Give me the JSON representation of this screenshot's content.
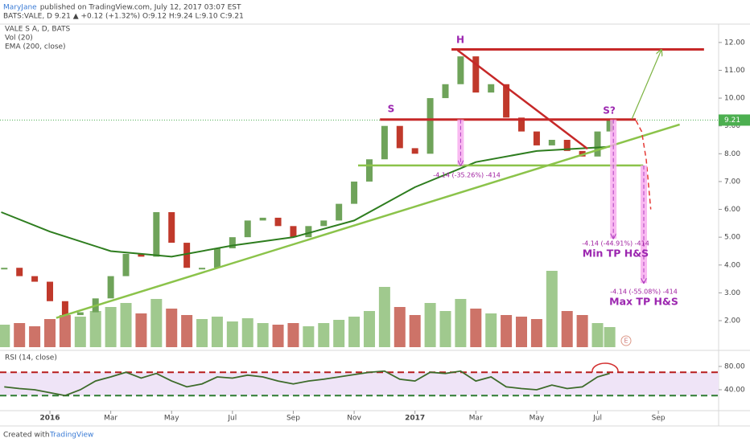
{
  "header": {
    "publisher": "MaryJane",
    "published": "published on TradingView.com, July 12, 2017 03:07 EST",
    "quote": "BATS:VALE, D  9.21 ▲ +0.12 (+1.32%) O:9.12 H:9.24 L:9.10 C:9.21"
  },
  "footer": {
    "created": "Created with",
    "brand": "TradingView"
  },
  "chart_data": [
    {
      "type": "price",
      "xlim": [
        -1.64,
        21.98
      ],
      "ylim": [
        0.96,
        12.66
      ],
      "yticks": [
        {
          "value": 2,
          "label": "2.00"
        },
        {
          "value": 3,
          "label": "3.00"
        },
        {
          "value": 4,
          "label": "4.00"
        },
        {
          "value": 5,
          "label": "5.00"
        },
        {
          "value": 6,
          "label": "6.00"
        },
        {
          "value": 7,
          "label": "7.00"
        },
        {
          "value": 8,
          "label": "8.00"
        },
        {
          "value": 9,
          "label": "9.00"
        },
        {
          "value": 10,
          "label": "10.00"
        },
        {
          "value": 11,
          "label": "11.00"
        },
        {
          "value": 12,
          "label": "12.00"
        }
      ],
      "grid": false,
      "series": [
        {
          "name": "VALE S A, D, BATS",
          "up_color": "#6fa35a",
          "down_color": "#c0392b",
          "x": [
            -1.5,
            -1,
            -0.5,
            0,
            0.5,
            1,
            1.5,
            2,
            2.5,
            3,
            3.5,
            4,
            4.5,
            5,
            5.5,
            6,
            6.5,
            7,
            7.5,
            8,
            8.5,
            9,
            9.5,
            10,
            10.5,
            11,
            11.5,
            12,
            12.5,
            13,
            13.5,
            14,
            14.5,
            15,
            15.5,
            16,
            16.5,
            17,
            17.5,
            18,
            18.4
          ],
          "values": [
            3.9,
            3.6,
            3.4,
            2.7,
            2.2,
            2.3,
            2.8,
            3.6,
            4.4,
            4.3,
            5.9,
            4.8,
            3.9,
            3.9,
            4.6,
            5.0,
            5.6,
            5.7,
            5.4,
            5.0,
            5.4,
            5.6,
            6.2,
            7.0,
            7.8,
            9.0,
            8.2,
            8.0,
            10.0,
            10.5,
            11.5,
            10.2,
            10.5,
            9.3,
            8.8,
            8.3,
            8.5,
            8.1,
            7.9,
            8.8,
            9.21
          ]
        },
        {
          "name": "Vol (20)",
          "ylim": [
            0,
            100
          ],
          "up_color": "#8fbf7a",
          "down_color": "#c45a4e",
          "x": [
            -1.5,
            -1,
            -0.5,
            0,
            0.5,
            1,
            1.5,
            2,
            2.5,
            3,
            3.5,
            4,
            4.5,
            5,
            5.5,
            6,
            6.5,
            7,
            7.5,
            8,
            8.5,
            9,
            9.5,
            10,
            10.5,
            11,
            11.5,
            12,
            12.5,
            13,
            13.5,
            14,
            14.5,
            15,
            15.5,
            16,
            16.5,
            17,
            17.5,
            18,
            18.4
          ],
          "values": [
            28,
            30,
            26,
            35,
            40,
            38,
            45,
            50,
            55,
            42,
            60,
            48,
            40,
            35,
            38,
            32,
            36,
            30,
            28,
            30,
            26,
            30,
            34,
            38,
            45,
            75,
            50,
            40,
            55,
            45,
            60,
            48,
            42,
            40,
            38,
            35,
            95,
            45,
            40,
            30,
            25
          ]
        },
        {
          "name": "EMA (200, close)",
          "color": "#2e7d1f",
          "x": [
            -1.6,
            0,
            2,
            3,
            4,
            6,
            8,
            10,
            12,
            14,
            16,
            18.4
          ],
          "values": [
            5.9,
            5.2,
            4.5,
            4.4,
            4.3,
            4.7,
            5.0,
            5.6,
            6.8,
            7.7,
            8.1,
            8.25
          ]
        }
      ],
      "drawings": [
        {
          "x": [
            13.2,
            21.5
          ],
          "y": [
            11.75,
            11.75
          ],
          "color": "#c62828",
          "width": 3
        },
        {
          "x": [
            10.85,
            19.26
          ],
          "y": [
            9.23,
            9.23
          ],
          "color": "#c62828",
          "width": 3
        },
        {
          "x": [
            13.4,
            17.67
          ],
          "y": [
            11.72,
            8.18
          ],
          "color": "#c62828",
          "width": 2.5
        },
        {
          "x": [
            10.13,
            19.5
          ],
          "y": [
            7.58,
            7.58
          ],
          "color": "#8bc34a",
          "width": 2.5
        },
        {
          "x": [
            0.21,
            20.7
          ],
          "y": [
            2.1,
            9.05
          ],
          "color": "#8bc34a",
          "width": 2.5
        },
        {
          "x": [
            19.13,
            20.1
          ],
          "y": [
            9.25,
            11.74
          ],
          "color": "#7cb342",
          "width": 1.2,
          "arrow": true
        },
        {
          "x": [
            19.26,
            19.45,
            19.6,
            19.75
          ],
          "y": [
            9.2,
            8.8,
            7.8,
            6.0
          ],
          "color": "#e53935",
          "width": 1.5,
          "dashed": true
        }
      ],
      "projections": [
        {
          "x": 13.5,
          "from": 9.23,
          "to": 7.58
        },
        {
          "x": 18.52,
          "from": 9.23,
          "to": 4.95
        },
        {
          "x": 19.52,
          "from": 7.58,
          "to": 3.35
        }
      ],
      "annotations": [
        "H",
        "S",
        "S?",
        "-4.14 (-35.26%) -414",
        "-4.14 (-44.91%) -414",
        "Min TP H&S",
        "-4.14 (-55.08%) -414",
        "Max TP H&S",
        "E"
      ]
    },
    {
      "type": "rsi",
      "legend": "RSI (14, close)",
      "color": "#3d6b2a",
      "xlim": [
        -1.64,
        21.98
      ],
      "xticks": [
        {
          "value": 0,
          "label": "2016"
        },
        {
          "value": 2,
          "label": "Mar"
        },
        {
          "value": 4,
          "label": "May"
        },
        {
          "value": 6,
          "label": "Jul"
        },
        {
          "value": 8,
          "label": "Sep"
        },
        {
          "value": 10,
          "label": "Nov"
        },
        {
          "value": 12,
          "label": "2017"
        },
        {
          "value": 14,
          "label": "Mar"
        },
        {
          "value": 16,
          "label": "May"
        },
        {
          "value": 18,
          "label": "Jul"
        },
        {
          "value": 20,
          "label": "Sep"
        }
      ],
      "ylim": [
        5.5,
        102
      ],
      "yticks": [
        {
          "value": 40,
          "label": "40.00"
        },
        {
          "value": 80,
          "label": "80.00"
        }
      ],
      "bands": [
        30,
        70
      ],
      "x": [
        -1.5,
        -1,
        -0.5,
        0,
        0.5,
        1,
        1.5,
        2,
        2.5,
        3,
        3.5,
        4,
        4.5,
        5,
        5.5,
        6,
        6.5,
        7,
        7.5,
        8,
        8.5,
        9,
        9.5,
        10,
        10.5,
        11,
        11.5,
        12,
        12.5,
        13,
        13.5,
        14,
        14.5,
        15,
        15.5,
        16,
        16.5,
        17,
        17.5,
        18,
        18.4
      ],
      "values": [
        45,
        42,
        40,
        35,
        30,
        40,
        55,
        62,
        70,
        60,
        68,
        55,
        45,
        50,
        62,
        60,
        65,
        62,
        55,
        50,
        55,
        58,
        62,
        66,
        70,
        72,
        58,
        55,
        70,
        68,
        72,
        55,
        62,
        45,
        42,
        40,
        48,
        42,
        45,
        62,
        68
      ]
    }
  ]
}
